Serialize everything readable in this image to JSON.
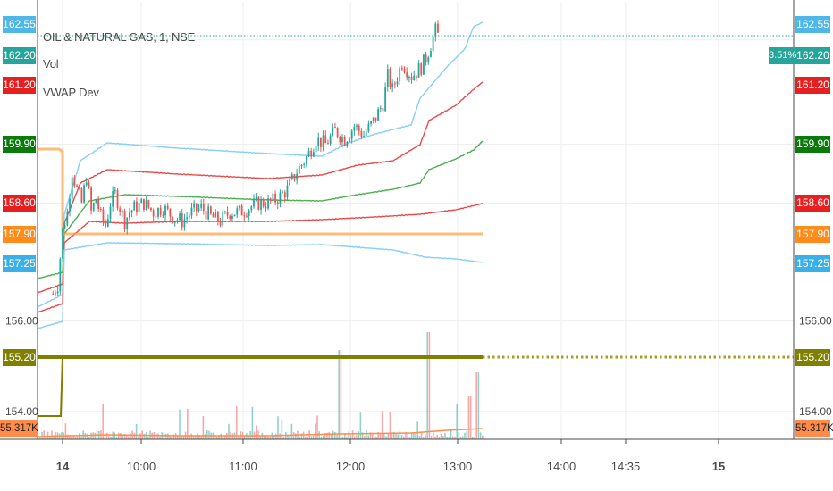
{
  "legend": {
    "title": "OIL & NATURAL GAS, 1, NSE",
    "vol": "Vol",
    "vwap": "VWAP Dev"
  },
  "price_tags": [
    {
      "label": "162.55",
      "color": "#4fb6e8",
      "price": 162.55
    },
    {
      "label": "162.20",
      "color": "#26a69a",
      "price": 162.2
    },
    {
      "label": "161.20",
      "color": "#e62020",
      "price": 161.2
    },
    {
      "label": "159.90",
      "color": "#0a7a0a",
      "price": 159.9
    },
    {
      "label": "158.60",
      "color": "#e62020",
      "price": 158.6
    },
    {
      "label": "157.90",
      "color": "#ff8c1a",
      "price": 157.9
    },
    {
      "label": "157.25",
      "color": "#3ab0e8",
      "price": 157.25
    },
    {
      "label": "155.20",
      "color": "#808000",
      "price": 155.2
    }
  ],
  "volume_tag": {
    "label": "55.317K",
    "color": "#ff8c4a"
  },
  "percent_tag": {
    "label": "3.51%",
    "color": "#26a69a"
  },
  "y_axis_ticks": [
    {
      "label": "156.00",
      "price": 156.0
    },
    {
      "label": "154.00",
      "price": 154.0
    }
  ],
  "x_axis_ticks": [
    {
      "label": "14",
      "bold": true
    },
    {
      "label": "10:00",
      "bold": false
    },
    {
      "label": "11:00",
      "bold": false
    },
    {
      "label": "12:00",
      "bold": false
    },
    {
      "label": "13:00",
      "bold": false
    },
    {
      "label": "14:00",
      "bold": false
    },
    {
      "label": "14:35",
      "bold": false
    },
    {
      "label": "15",
      "bold": true
    }
  ],
  "colors": {
    "up": "#26a69a",
    "down": "#ef5350",
    "band_outer": "#87cefa",
    "band_mid_red": "#e84a4a",
    "band_green": "#4caf50",
    "vwap": "#ff9f40",
    "hline": "#808000"
  },
  "chart_data": {
    "type": "candlestick",
    "symbol": "OIL & NATURAL GAS",
    "interval": "1",
    "exchange": "NSE",
    "ylim": [
      153.9,
      162.9
    ],
    "close_path": [
      [
        9.15,
        156.6
      ],
      [
        9.2,
        156.8
      ],
      [
        9.25,
        158.0
      ],
      [
        9.3,
        158.4
      ],
      [
        9.35,
        159.3
      ],
      [
        9.4,
        158.9
      ],
      [
        9.45,
        158.6
      ],
      [
        9.5,
        159.2
      ],
      [
        9.55,
        158.4
      ],
      [
        9.6,
        158.7
      ],
      [
        9.65,
        158.3
      ],
      [
        9.7,
        158.1
      ],
      [
        9.75,
        158.6
      ],
      [
        9.8,
        158.8
      ],
      [
        9.85,
        158.5
      ],
      [
        9.9,
        158.2
      ],
      [
        9.95,
        158.4
      ],
      [
        10.0,
        158.5
      ],
      [
        10.1,
        158.6
      ],
      [
        10.2,
        158.4
      ],
      [
        10.3,
        158.5
      ],
      [
        10.4,
        158.3
      ],
      [
        10.5,
        158.2
      ],
      [
        10.6,
        158.4
      ],
      [
        10.7,
        158.5
      ],
      [
        10.8,
        158.3
      ],
      [
        10.9,
        158.2
      ],
      [
        11.0,
        158.4
      ],
      [
        11.1,
        158.4
      ],
      [
        11.2,
        158.5
      ],
      [
        11.3,
        158.6
      ],
      [
        11.4,
        158.6
      ],
      [
        11.5,
        158.7
      ],
      [
        11.6,
        158.9
      ],
      [
        11.7,
        159.3
      ],
      [
        11.8,
        159.6
      ],
      [
        11.9,
        160.0
      ],
      [
        12.0,
        159.9
      ],
      [
        12.1,
        160.2
      ],
      [
        12.2,
        160.0
      ],
      [
        12.3,
        160.3
      ],
      [
        12.4,
        160.1
      ],
      [
        12.5,
        160.4
      ],
      [
        12.55,
        160.6
      ],
      [
        12.6,
        160.8
      ],
      [
        12.65,
        161.4
      ],
      [
        12.7,
        161.1
      ],
      [
        12.8,
        161.7
      ],
      [
        12.9,
        161.4
      ],
      [
        13.0,
        161.6
      ],
      [
        13.05,
        161.8
      ],
      [
        13.1,
        162.1
      ],
      [
        13.15,
        162.4
      ],
      [
        13.2,
        162.2
      ]
    ],
    "vwap_dev_bands": {
      "upper_2": "light blue",
      "upper_1": "red",
      "mid": "green",
      "lower_1": "red",
      "lower_2": "light blue",
      "vwap": "orange"
    },
    "volume_last": "55.317K"
  }
}
